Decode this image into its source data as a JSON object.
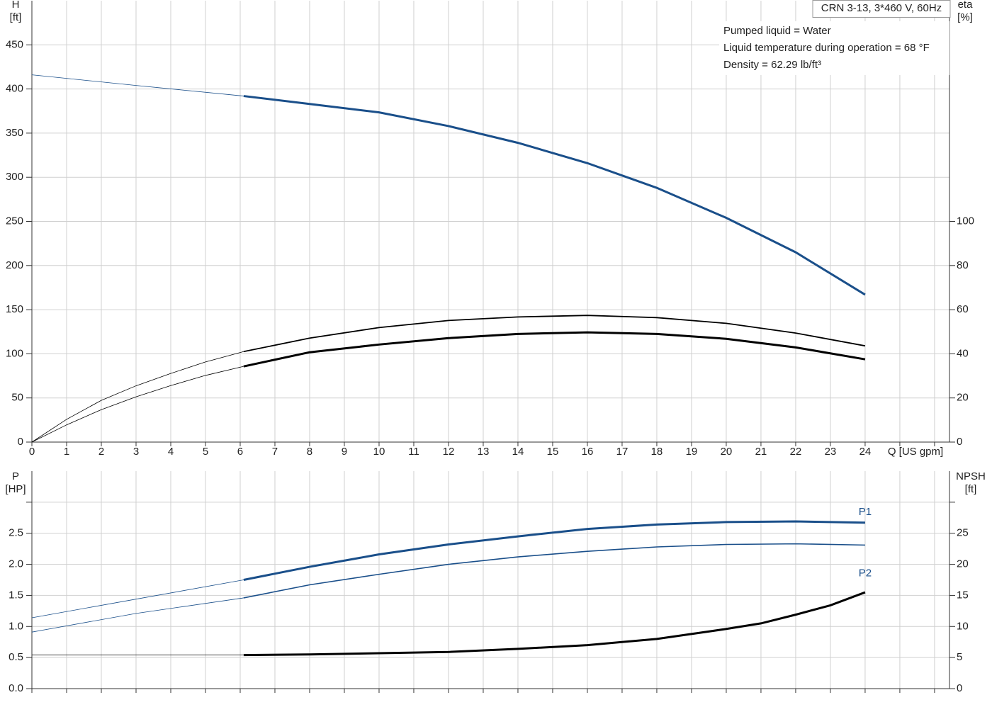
{
  "title": "CRN 3-13, 3*460 V, 60Hz",
  "info": [
    "Pumped liquid = Water",
    "Liquid temperature during operation = 68 °F",
    "Density = 62.29 lb/ft³"
  ],
  "chart_data": [
    {
      "type": "line",
      "y_label": [
        "H",
        "[ft]"
      ],
      "y2_label": [
        "eta",
        "[%]"
      ],
      "x_label": "Q [US gpm]",
      "xlim": [
        0,
        26.43
      ],
      "ylim": [
        0,
        500
      ],
      "y2lim": [
        0,
        200
      ],
      "xticks": [
        0,
        1,
        2,
        3,
        4,
        5,
        6,
        7,
        8,
        9,
        10,
        11,
        12,
        13,
        14,
        15,
        16,
        17,
        18,
        19,
        20,
        21,
        22,
        23,
        24,
        {
          "value": 25,
          "label": null
        },
        {
          "value": 26,
          "label": null
        }
      ],
      "yticks": [
        0,
        50,
        100,
        150,
        200,
        250,
        300,
        350,
        400,
        450
      ],
      "y2ticks": [
        0,
        20,
        40,
        60,
        80,
        100
      ],
      "grid": true,
      "series": [
        {
          "color": "#1a4f8a",
          "width": 0.8,
          "x": [
            0,
            3,
            6.1
          ],
          "values": [
            416,
            404,
            392
          ]
        },
        {
          "color": "#1a4f8a",
          "width": 3,
          "x": [
            6.1,
            8,
            10,
            12,
            14,
            16,
            18,
            20,
            22,
            24
          ],
          "values": [
            392,
            383,
            373.5,
            358,
            339,
            316,
            288,
            254,
            215,
            167
          ]
        },
        {
          "color": "#000000",
          "width": 0.8,
          "axis": "y2",
          "x": [
            0,
            1,
            2,
            3,
            4,
            5,
            6.1
          ],
          "values": [
            0,
            10.3,
            18.9,
            25.5,
            31.1,
            36.3,
            41
          ]
        },
        {
          "color": "#000000",
          "width": 1.8,
          "axis": "y2",
          "x": [
            6.1,
            8,
            10,
            12,
            14,
            16,
            18,
            20,
            22,
            24
          ],
          "values": [
            41,
            47.1,
            51.9,
            55.1,
            56.7,
            57.4,
            56.4,
            53.8,
            49.4,
            43.6
          ]
        },
        {
          "color": "#000000",
          "width": 0.8,
          "axis": "y2",
          "x": [
            0,
            1,
            2,
            3,
            4,
            5,
            6.1
          ],
          "values": [
            0,
            7.8,
            14.7,
            20.5,
            25.6,
            30.2,
            34.3
          ]
        },
        {
          "color": "#000000",
          "width": 3,
          "axis": "y2",
          "x": [
            6.1,
            8,
            10,
            12,
            14,
            16,
            18,
            20,
            22,
            24
          ],
          "values": [
            34.3,
            40.7,
            44.2,
            47.1,
            49,
            49.7,
            49,
            46.8,
            42.9,
            37.5
          ]
        }
      ]
    },
    {
      "type": "line",
      "y_label": [
        "P",
        "[HP]"
      ],
      "y2_label": [
        "NPSH",
        "[ft]"
      ],
      "xlim": [
        0,
        26.43
      ],
      "ylim": [
        0,
        3.5
      ],
      "y2lim": [
        0,
        35
      ],
      "xticks": [
        0,
        1,
        2,
        3,
        4,
        5,
        6,
        7,
        8,
        9,
        10,
        11,
        12,
        13,
        14,
        15,
        16,
        17,
        18,
        19,
        20,
        21,
        22,
        23,
        24,
        25,
        26
      ],
      "xtick_labels": false,
      "yticks": [
        {
          "value": 0,
          "label": "0.0"
        },
        0.5,
        {
          "value": 1,
          "label": "1.0"
        },
        1.5,
        {
          "value": 2,
          "label": "2.0"
        },
        2.5,
        {
          "value": 3,
          "label": null
        }
      ],
      "y2ticks": [
        0,
        5,
        10,
        15,
        20,
        25,
        {
          "value": 30,
          "label": null
        }
      ],
      "grid": true,
      "series": [
        {
          "color": "#1a4f8a",
          "width": 0.8,
          "x": [
            0,
            3,
            6.1
          ],
          "values": [
            1.14,
            1.44,
            1.75
          ]
        },
        {
          "name": "P1",
          "color": "#1a4f8a",
          "width": 3,
          "x": [
            6.1,
            8,
            10,
            12,
            14,
            16,
            18,
            20,
            22,
            24
          ],
          "values": [
            1.75,
            1.96,
            2.16,
            2.32,
            2.45,
            2.57,
            2.64,
            2.68,
            2.69,
            2.67
          ]
        },
        {
          "color": "#1a4f8a",
          "width": 0.8,
          "x": [
            0,
            3,
            6.1
          ],
          "values": [
            0.91,
            1.21,
            1.46
          ]
        },
        {
          "name": "P2",
          "color": "#1a4f8a",
          "width": 1.6,
          "x": [
            6.1,
            8,
            10,
            12,
            14,
            16,
            18,
            20,
            22,
            24
          ],
          "values": [
            1.46,
            1.67,
            1.84,
            2,
            2.12,
            2.21,
            2.28,
            2.32,
            2.33,
            2.31
          ]
        },
        {
          "color": "#000000",
          "width": 0.8,
          "axis": "y2",
          "x": [
            0,
            6.1
          ],
          "values": [
            5.4,
            5.4
          ]
        },
        {
          "color": "#000000",
          "width": 3,
          "axis": "y2",
          "x": [
            6.1,
            8,
            10,
            12,
            14,
            16,
            18,
            20,
            21,
            22,
            23,
            24
          ],
          "values": [
            5.4,
            5.5,
            5.7,
            5.9,
            6.4,
            7,
            8,
            9.6,
            10.5,
            11.9,
            13.4,
            15.5
          ]
        }
      ]
    }
  ]
}
